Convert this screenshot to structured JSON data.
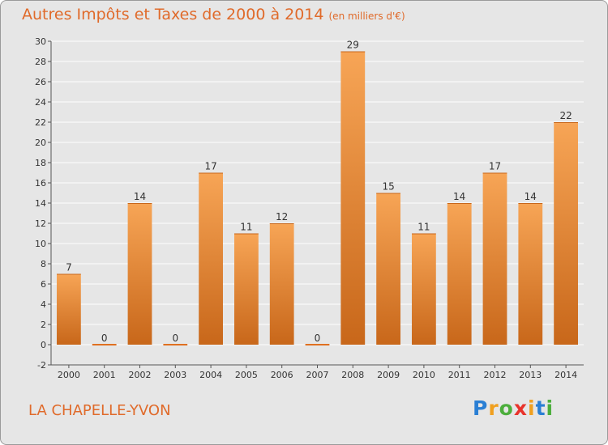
{
  "title": "Autres Impôts et Taxes de 2000 à 2014",
  "subtitle": "(en milliers d'€)",
  "place": "LA CHAPELLE-YVON",
  "logo": {
    "letters": [
      "P",
      "r",
      "o",
      "x",
      "i",
      "t",
      "i"
    ],
    "colors": [
      "#2a7fd4",
      "#f0a020",
      "#4cae3c",
      "#e8332b",
      "#f0a020",
      "#2a7fd4",
      "#4cae3c"
    ]
  },
  "colors": {
    "bar_top": "#f7a556",
    "bar_bottom": "#c8671a",
    "title": "#e06a2a",
    "grid": "#ffffff",
    "background": "#e6e6e6"
  },
  "chart_data": {
    "type": "bar",
    "categories": [
      "2000",
      "2001",
      "2002",
      "2003",
      "2004",
      "2005",
      "2006",
      "2007",
      "2008",
      "2009",
      "2010",
      "2011",
      "2012",
      "2013",
      "2014"
    ],
    "values": [
      7,
      0,
      14,
      0,
      17,
      11,
      12,
      0,
      29,
      15,
      11,
      14,
      17,
      14,
      22
    ],
    "title": "Autres Impôts et Taxes de 2000 à 2014",
    "subtitle": "(en milliers d'€)",
    "ylim": [
      -2,
      30
    ],
    "yticks": [
      -2,
      0,
      2,
      4,
      6,
      8,
      10,
      12,
      14,
      16,
      18,
      20,
      22,
      24,
      26,
      28,
      30
    ],
    "grid": true,
    "legend": "none"
  }
}
